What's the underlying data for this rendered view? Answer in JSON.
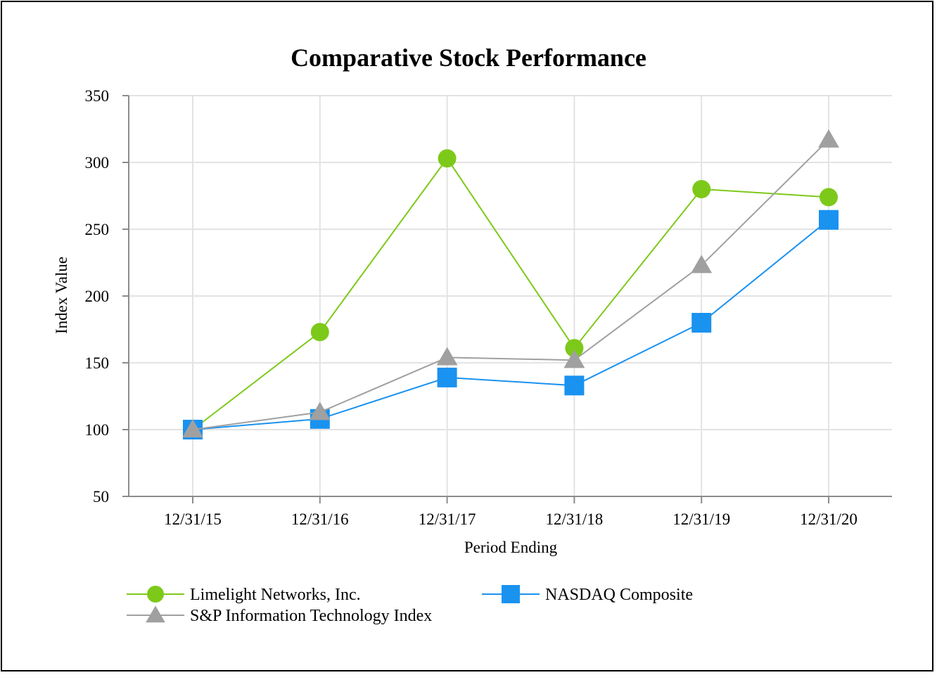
{
  "chart_data": {
    "type": "line",
    "title": "Comparative Stock Performance",
    "xlabel": "Period Ending",
    "ylabel": "Index Value",
    "ylim": [
      50,
      350
    ],
    "yticks": [
      50,
      100,
      150,
      200,
      250,
      300,
      350
    ],
    "categories": [
      "12/31/15",
      "12/31/16",
      "12/31/17",
      "12/31/18",
      "12/31/19",
      "12/31/20"
    ],
    "grid": true,
    "legend_position": "bottom",
    "series": [
      {
        "name": "Limelight Networks, Inc.",
        "marker": "circle",
        "color": "#7dc91a",
        "values": [
          100,
          173,
          303,
          161,
          280,
          274
        ]
      },
      {
        "name": "NASDAQ Composite",
        "marker": "square",
        "color": "#1a92f0",
        "values": [
          100,
          108,
          139,
          133,
          180,
          257
        ]
      },
      {
        "name": "S&P Information Technology Index",
        "marker": "triangle",
        "color": "#a0a0a0",
        "values": [
          100,
          113,
          154,
          152,
          223,
          317
        ]
      }
    ]
  }
}
